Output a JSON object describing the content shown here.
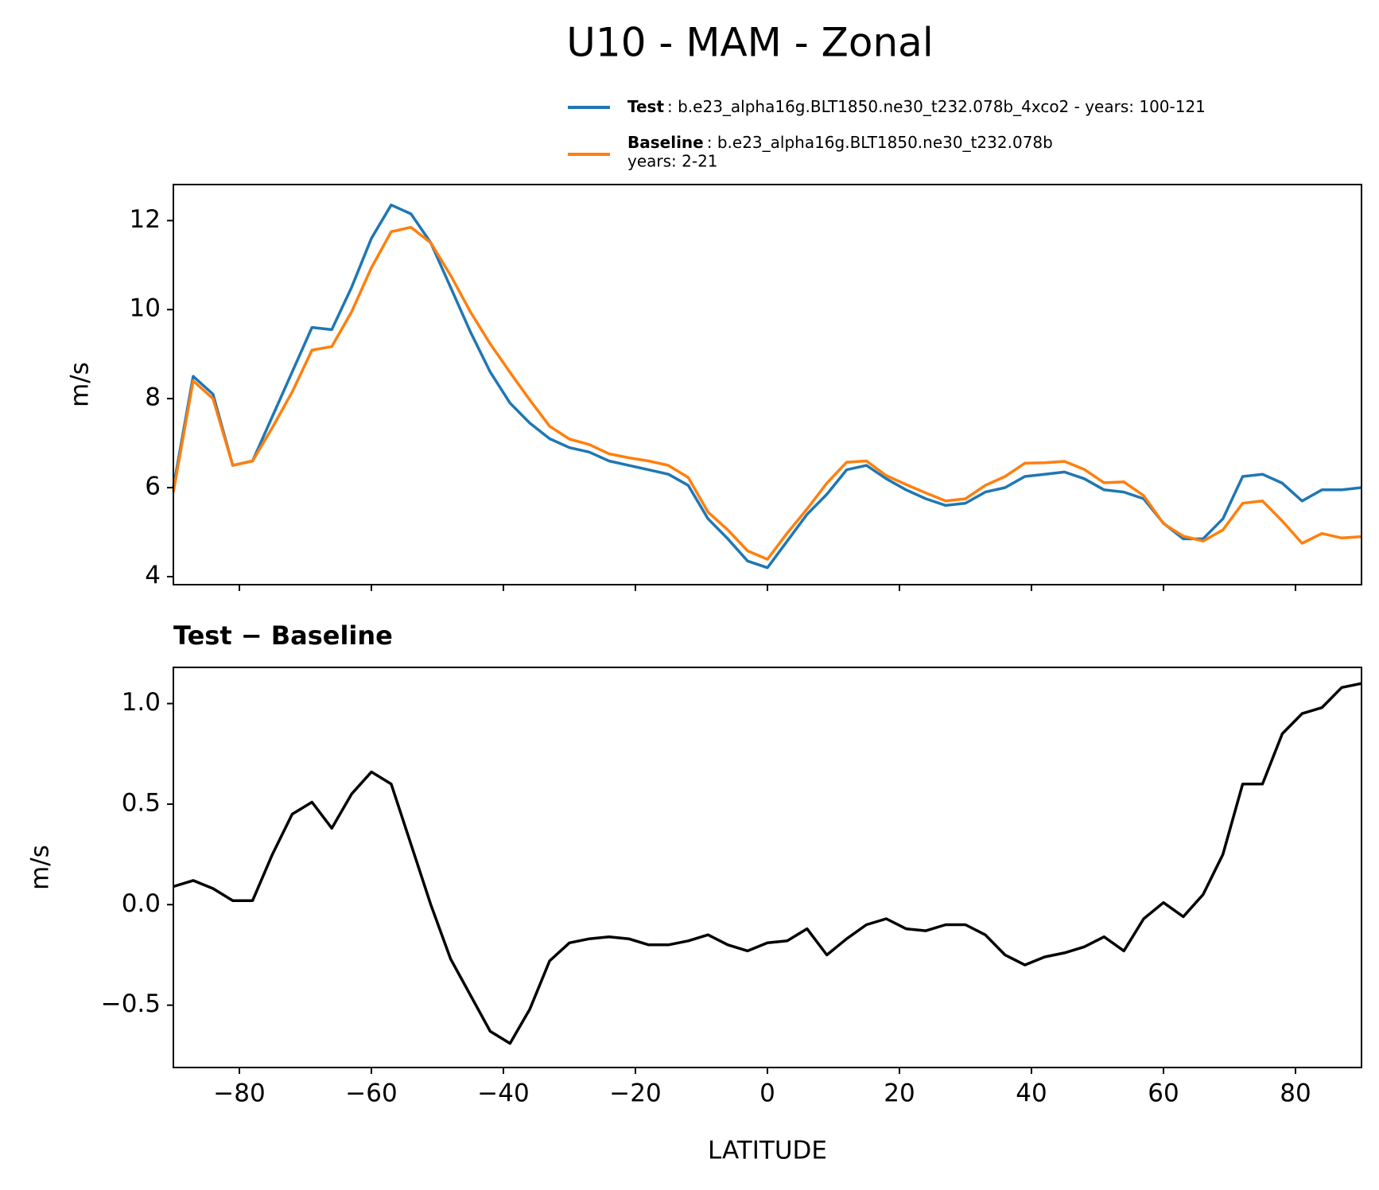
{
  "chart_data": [
    {
      "type": "line",
      "title": "U10 - MAM - Zonal",
      "ylabel": "m/s",
      "x": [
        -90,
        -87,
        -84,
        -81,
        -78,
        -75,
        -72,
        -69,
        -66,
        -63,
        -60,
        -57,
        -54,
        -51,
        -48,
        -45,
        -42,
        -39,
        -36,
        -33,
        -30,
        -27,
        -24,
        -21,
        -18,
        -15,
        -12,
        -9,
        -6,
        -3,
        0,
        3,
        6,
        9,
        12,
        15,
        18,
        21,
        24,
        27,
        30,
        33,
        36,
        39,
        42,
        45,
        48,
        51,
        54,
        57,
        60,
        63,
        66,
        69,
        72,
        75,
        78,
        81,
        84,
        87,
        90
      ],
      "series": [
        {
          "name": "Test",
          "description": [
            ": b.e23_alpha16g.BLT1850.ne30_t232.078b_4xco2 - years: 100-121"
          ],
          "color": "#1f77b4",
          "values": [
            6.0,
            8.5,
            8.1,
            6.5,
            6.6,
            7.6,
            8.6,
            9.6,
            9.55,
            10.5,
            11.6,
            12.35,
            12.15,
            11.5,
            10.5,
            9.5,
            8.6,
            7.9,
            7.45,
            7.1,
            6.9,
            6.8,
            6.6,
            6.5,
            6.4,
            6.3,
            6.05,
            5.3,
            4.85,
            4.35,
            4.2,
            4.8,
            5.4,
            5.85,
            6.4,
            6.5,
            6.2,
            5.95,
            5.75,
            5.6,
            5.65,
            5.9,
            6.0,
            6.25,
            6.3,
            6.35,
            6.2,
            5.95,
            5.9,
            5.75,
            5.2,
            4.85,
            4.85,
            5.3,
            6.25,
            6.3,
            6.1,
            5.7,
            5.95,
            5.95,
            6.0
          ]
        },
        {
          "name": "Baseline",
          "description": [
            ": b.e23_alpha16g.BLT1850.ne30_t232.078b",
            "years: 2-21"
          ],
          "color": "#ff7f0e",
          "values": [
            5.9,
            8.4,
            8.0,
            6.5,
            6.6,
            7.35,
            8.15,
            9.09,
            9.17,
            9.95,
            10.94,
            11.75,
            11.85,
            11.5,
            10.77,
            9.95,
            9.23,
            8.59,
            7.97,
            7.38,
            7.09,
            6.97,
            6.76,
            6.67,
            6.6,
            6.5,
            6.23,
            5.45,
            5.05,
            4.58,
            4.39,
            4.98,
            5.52,
            6.1,
            6.57,
            6.6,
            6.27,
            6.07,
            5.88,
            5.7,
            5.75,
            6.05,
            6.25,
            6.55,
            6.56,
            6.59,
            6.41,
            6.11,
            6.13,
            5.82,
            5.19,
            4.91,
            4.8,
            5.05,
            5.65,
            5.7,
            5.25,
            4.75,
            4.97,
            4.87,
            4.9
          ]
        }
      ],
      "xlim": [
        -90,
        90
      ],
      "xticks": [
        -80,
        -60,
        -40,
        -20,
        0,
        20,
        40,
        60,
        80
      ],
      "ylim": [
        3.82,
        12.81
      ],
      "yticks": [
        4,
        6,
        8,
        10,
        12
      ]
    },
    {
      "type": "line",
      "title": "Test − Baseline",
      "ylabel": "m/s",
      "xlabel": "LATITUDE",
      "color": "#000000",
      "x": [
        -90,
        -87,
        -84,
        -81,
        -78,
        -75,
        -72,
        -69,
        -66,
        -63,
        -60,
        -57,
        -54,
        -51,
        -48,
        -45,
        -42,
        -39,
        -36,
        -33,
        -30,
        -27,
        -24,
        -21,
        -18,
        -15,
        -12,
        -9,
        -6,
        -3,
        0,
        3,
        6,
        9,
        12,
        15,
        18,
        21,
        24,
        27,
        30,
        33,
        36,
        39,
        42,
        45,
        48,
        51,
        54,
        57,
        60,
        63,
        66,
        69,
        72,
        75,
        78,
        81,
        84,
        87,
        90
      ],
      "values": [
        0.09,
        0.12,
        0.08,
        0.02,
        0.02,
        0.25,
        0.45,
        0.51,
        0.38,
        0.55,
        0.66,
        0.6,
        0.3,
        0.0,
        -0.27,
        -0.45,
        -0.63,
        -0.69,
        -0.52,
        -0.28,
        -0.19,
        -0.17,
        -0.16,
        -0.17,
        -0.2,
        -0.2,
        -0.18,
        -0.15,
        -0.2,
        -0.23,
        -0.19,
        -0.18,
        -0.12,
        -0.25,
        -0.17,
        -0.1,
        -0.07,
        -0.12,
        -0.13,
        -0.1,
        -0.1,
        -0.15,
        -0.25,
        -0.3,
        -0.26,
        -0.24,
        -0.21,
        -0.16,
        -0.23,
        -0.07,
        0.01,
        -0.06,
        0.05,
        0.25,
        0.6,
        0.6,
        0.85,
        0.95,
        0.98,
        1.08,
        1.1
      ],
      "xlim": [
        -90,
        90
      ],
      "xticks": [
        {
          "value": -80,
          "label": "−80"
        },
        {
          "value": -60,
          "label": "−60"
        },
        {
          "value": -40,
          "label": "−40"
        },
        {
          "value": -20,
          "label": "−20"
        },
        0,
        20,
        40,
        60,
        80
      ],
      "ylim": [
        -0.81,
        1.18
      ],
      "yticks": [
        {
          "value": -0.5,
          "label": "−0.5"
        },
        {
          "value": 0,
          "label": "0.0"
        },
        {
          "value": 0.5,
          "label": "0.5"
        },
        {
          "value": 1,
          "label": "1.0"
        }
      ]
    }
  ]
}
